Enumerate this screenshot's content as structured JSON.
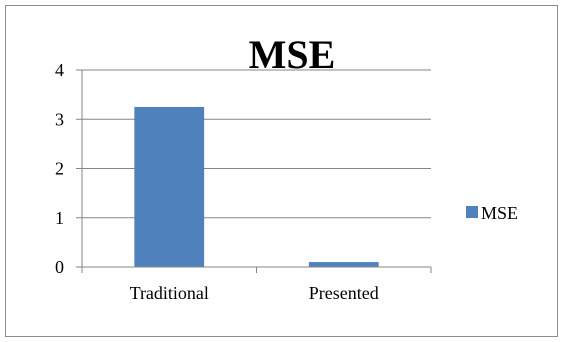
{
  "chart_data": {
    "type": "bar",
    "title": "MSE",
    "categories": [
      "Traditional",
      "Presented"
    ],
    "series": [
      {
        "name": "MSE",
        "values": [
          3.25,
          0.1
        ],
        "color": "#4f81bd"
      }
    ],
    "ylim": [
      0,
      4
    ],
    "yticks": [
      "0",
      "1",
      "2",
      "3",
      "4"
    ],
    "grid": true,
    "legend_position": "right"
  }
}
